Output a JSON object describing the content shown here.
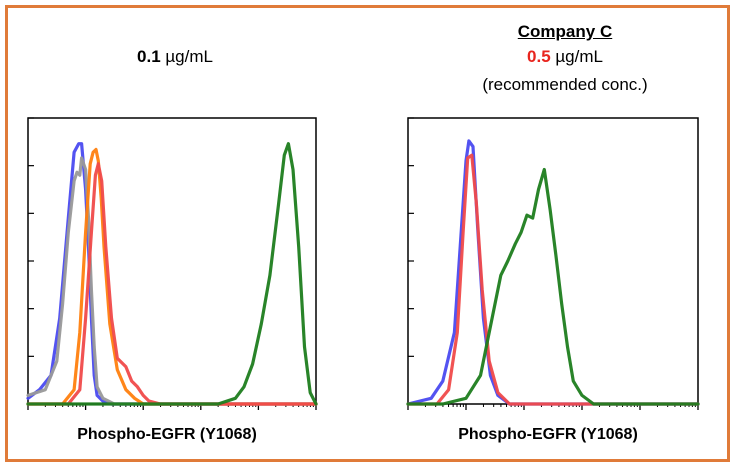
{
  "colors": {
    "frame": "#e07b39",
    "highlight_red": "#e8251e"
  },
  "left_panel": {
    "conc_value": "0.1",
    "conc_unit": " µg/mL",
    "x_label": "Phospho-EGFR (Y1068)"
  },
  "right_panel": {
    "company": "Company C",
    "conc_value": "0.5",
    "conc_unit": " µg/mL",
    "note": "(recommended conc.)",
    "x_label": "Phospho-EGFR (Y1068)"
  },
  "chart_data": [
    {
      "type": "line",
      "xscale": "log",
      "xlim": [
        0,
        5
      ],
      "ylim": [
        0,
        1
      ],
      "xlabel": "Phospho-EGFR (Y1068)",
      "ylabel": "",
      "series": [
        {
          "color": "#4a4af0",
          "x": [
            0,
            0.2,
            0.4,
            0.55,
            0.7,
            0.8,
            0.88,
            0.93,
            1.0,
            1.05,
            1.1,
            1.15,
            1.2,
            1.3,
            1.45,
            1.6,
            5.0
          ],
          "y": [
            0.02,
            0.05,
            0.1,
            0.3,
            0.65,
            0.88,
            0.91,
            0.91,
            0.75,
            0.55,
            0.3,
            0.1,
            0.03,
            0.01,
            0.0,
            0.0,
            0.0
          ]
        },
        {
          "color": "#999999",
          "x": [
            0,
            0.3,
            0.5,
            0.6,
            0.7,
            0.8,
            0.85,
            0.9,
            0.93,
            1.0,
            1.05,
            1.1,
            1.15,
            1.2,
            1.3,
            1.5,
            5.0
          ],
          "y": [
            0.03,
            0.05,
            0.15,
            0.35,
            0.6,
            0.78,
            0.81,
            0.8,
            0.86,
            0.82,
            0.65,
            0.4,
            0.2,
            0.06,
            0.02,
            0.0,
            0.0
          ]
        },
        {
          "color": "#ff7f0e",
          "x": [
            0,
            0.6,
            0.8,
            0.9,
            1.0,
            1.08,
            1.13,
            1.18,
            1.22,
            1.27,
            1.32,
            1.42,
            1.55,
            1.7,
            1.85,
            2.0,
            5.0
          ],
          "y": [
            0.0,
            0.0,
            0.05,
            0.25,
            0.6,
            0.84,
            0.88,
            0.89,
            0.85,
            0.72,
            0.55,
            0.28,
            0.12,
            0.05,
            0.02,
            0.0,
            0.0
          ]
        },
        {
          "color": "#f04a4a",
          "x": [
            0,
            0.7,
            0.9,
            1.0,
            1.1,
            1.17,
            1.22,
            1.28,
            1.35,
            1.45,
            1.55,
            1.7,
            1.8,
            1.9,
            2.0,
            2.1,
            2.3,
            5.0
          ],
          "y": [
            0.0,
            0.0,
            0.05,
            0.3,
            0.6,
            0.8,
            0.84,
            0.78,
            0.55,
            0.3,
            0.16,
            0.13,
            0.08,
            0.06,
            0.03,
            0.01,
            0.0,
            0.0
          ]
        },
        {
          "color": "#1e7d1e",
          "x": [
            0,
            3.3,
            3.6,
            3.75,
            3.9,
            4.05,
            4.2,
            4.35,
            4.45,
            4.52,
            4.6,
            4.7,
            4.8,
            4.9,
            5.0
          ],
          "y": [
            0.0,
            0.0,
            0.02,
            0.06,
            0.14,
            0.28,
            0.45,
            0.7,
            0.87,
            0.91,
            0.82,
            0.55,
            0.2,
            0.04,
            0.0
          ]
        }
      ]
    },
    {
      "type": "line",
      "xscale": "log",
      "xlim": [
        0,
        5
      ],
      "ylim": [
        0,
        1
      ],
      "xlabel": "Phospho-EGFR (Y1068)",
      "ylabel": "",
      "series": [
        {
          "color": "#4a4af0",
          "x": [
            0,
            0.4,
            0.6,
            0.8,
            0.9,
            1.0,
            1.05,
            1.12,
            1.2,
            1.3,
            1.42,
            1.55,
            1.75,
            5.0
          ],
          "y": [
            0.0,
            0.02,
            0.08,
            0.25,
            0.55,
            0.85,
            0.92,
            0.9,
            0.62,
            0.3,
            0.1,
            0.03,
            0.0,
            0.0
          ]
        },
        {
          "color": "#f04a4a",
          "x": [
            0,
            0.5,
            0.7,
            0.85,
            0.95,
            1.03,
            1.1,
            1.18,
            1.28,
            1.4,
            1.55,
            1.75,
            5.0
          ],
          "y": [
            0.0,
            0.0,
            0.05,
            0.25,
            0.6,
            0.86,
            0.87,
            0.7,
            0.4,
            0.15,
            0.04,
            0.0,
            0.0
          ]
        },
        {
          "color": "#1e7d1e",
          "x": [
            0,
            0.6,
            1.0,
            1.25,
            1.45,
            1.6,
            1.72,
            1.85,
            1.95,
            2.05,
            2.15,
            2.25,
            2.35,
            2.45,
            2.55,
            2.65,
            2.75,
            2.85,
            3.0,
            3.2,
            5.0
          ],
          "y": [
            0.0,
            0.0,
            0.02,
            0.1,
            0.3,
            0.45,
            0.5,
            0.56,
            0.6,
            0.66,
            0.65,
            0.75,
            0.82,
            0.68,
            0.52,
            0.35,
            0.2,
            0.08,
            0.03,
            0.0,
            0.0
          ]
        }
      ]
    }
  ]
}
